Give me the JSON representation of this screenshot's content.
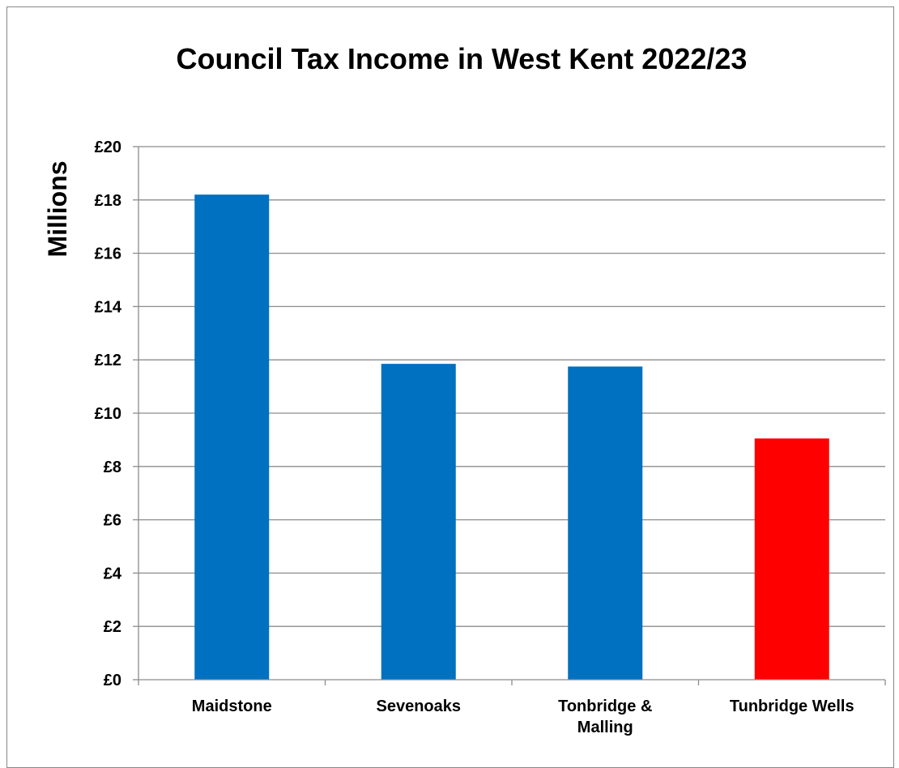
{
  "chart_data": {
    "type": "bar",
    "title": "Council Tax Income in West Kent 2022/23",
    "xlabel": "",
    "ylabel": "Millions",
    "categories": [
      [
        "Maidstone"
      ],
      [
        "Sevenoaks"
      ],
      [
        "Tonbridge &",
        "Malling"
      ],
      [
        "Tunbridge Wells"
      ]
    ],
    "values": [
      18.2,
      11.85,
      11.75,
      9.05
    ],
    "bar_colors": [
      "#0070c0",
      "#0070c0",
      "#0070c0",
      "#ff0000"
    ],
    "ylim": [
      0,
      20
    ],
    "yticks": [
      0,
      2,
      4,
      6,
      8,
      10,
      12,
      14,
      16,
      18,
      20
    ],
    "ytick_labels": [
      "£0",
      "£2",
      "£4",
      "£6",
      "£8",
      "£10",
      "£12",
      "£14",
      "£16",
      "£18",
      "£20"
    ],
    "grid": true,
    "legend": "none"
  }
}
